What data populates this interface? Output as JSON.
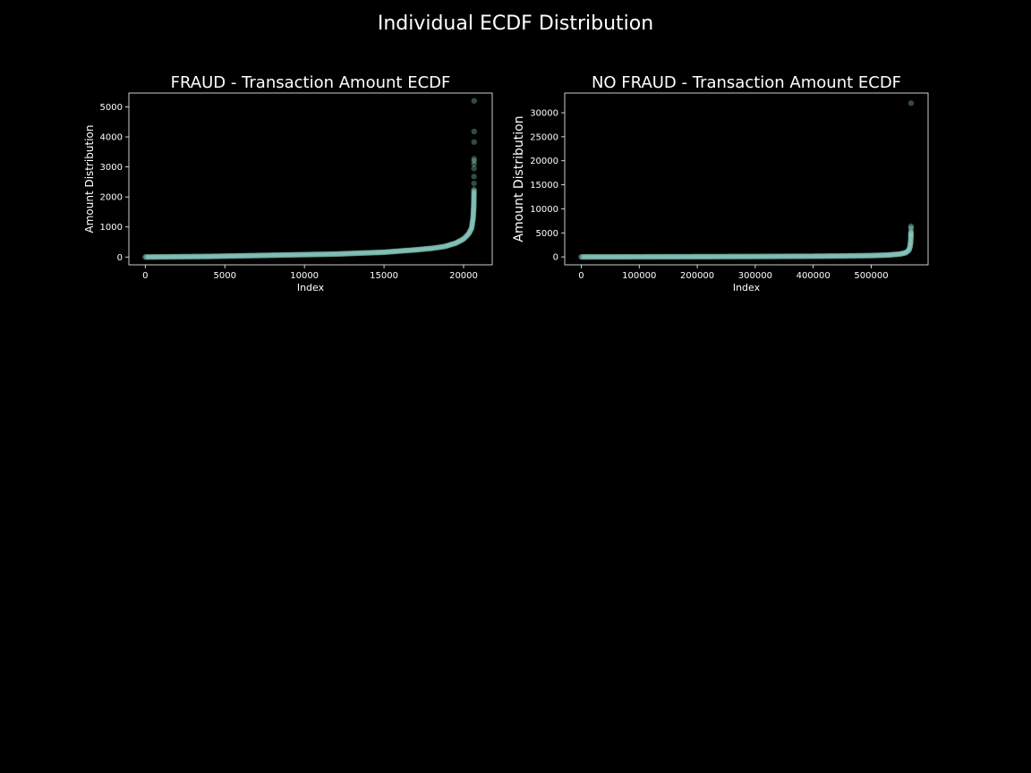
{
  "figure": {
    "suptitle": "Individual ECDF Distribution",
    "background": "#000000",
    "marker_color": "#8dd3c7"
  },
  "chart_data": [
    {
      "type": "scatter",
      "title": "FRAUD - Transaction Amount ECDF",
      "xlabel": "Index",
      "ylabel": "Amount Distribution",
      "xlim": [
        -1030,
        21800
      ],
      "ylim": [
        -260,
        5460
      ],
      "xticks": [
        0,
        5000,
        10000,
        15000,
        20000
      ],
      "xtick_labels": [
        "0",
        "5000",
        "10000",
        "15000",
        "20000"
      ],
      "yticks": [
        0,
        1000,
        2000,
        3000,
        4000,
        5000
      ],
      "ytick_labels": [
        "0",
        "1000",
        "2000",
        "3000",
        "4000",
        "5000"
      ],
      "n_points": 20663,
      "curve": [
        [
          0,
          0
        ],
        [
          2000,
          10
        ],
        [
          4000,
          20
        ],
        [
          6000,
          40
        ],
        [
          8000,
          60
        ],
        [
          10000,
          80
        ],
        [
          12000,
          100
        ],
        [
          14000,
          140
        ],
        [
          15000,
          160
        ],
        [
          16000,
          200
        ],
        [
          17000,
          240
        ],
        [
          18000,
          290
        ],
        [
          18800,
          350
        ],
        [
          19500,
          460
        ],
        [
          20000,
          600
        ],
        [
          20300,
          760
        ],
        [
          20500,
          950
        ],
        [
          20600,
          1300
        ],
        [
          20640,
          1700
        ],
        [
          20655,
          2200
        ]
      ],
      "outliers": [
        [
          20663,
          5200
        ],
        [
          20662,
          4180
        ],
        [
          20661,
          3830
        ],
        [
          20660,
          3270
        ],
        [
          20659,
          3200
        ],
        [
          20658,
          3100
        ],
        [
          20657,
          2950
        ],
        [
          20656,
          2680
        ],
        [
          20654,
          2450
        ],
        [
          20653,
          2250
        ]
      ]
    },
    {
      "type": "scatter",
      "title": "NO FRAUD - Transaction Amount ECDF",
      "xlabel": "Index",
      "ylabel": "Amount Distribution",
      "xlim": [
        -28500,
        598000
      ],
      "ylim": [
        -1650,
        34100
      ],
      "xticks": [
        0,
        100000,
        200000,
        300000,
        400000,
        500000
      ],
      "xtick_labels": [
        "0",
        "100000",
        "200000",
        "300000",
        "400000",
        "500000"
      ],
      "yticks": [
        0,
        5000,
        10000,
        15000,
        20000,
        25000,
        30000
      ],
      "ytick_labels": [
        "0",
        "5000",
        "10000",
        "15000",
        "20000",
        "25000",
        "30000"
      ],
      "n_points": 568630,
      "curve": [
        [
          0,
          0
        ],
        [
          100000,
          20
        ],
        [
          200000,
          50
        ],
        [
          300000,
          90
        ],
        [
          400000,
          140
        ],
        [
          450000,
          190
        ],
        [
          500000,
          280
        ],
        [
          530000,
          400
        ],
        [
          550000,
          600
        ],
        [
          560000,
          900
        ],
        [
          565000,
          1400
        ],
        [
          567000,
          2200
        ],
        [
          568000,
          3200
        ],
        [
          568400,
          4300
        ],
        [
          568550,
          5200
        ]
      ],
      "outliers": [
        [
          568630,
          32000
        ],
        [
          568620,
          6400
        ],
        [
          568610,
          6100
        ],
        [
          568600,
          5800
        ]
      ]
    }
  ]
}
